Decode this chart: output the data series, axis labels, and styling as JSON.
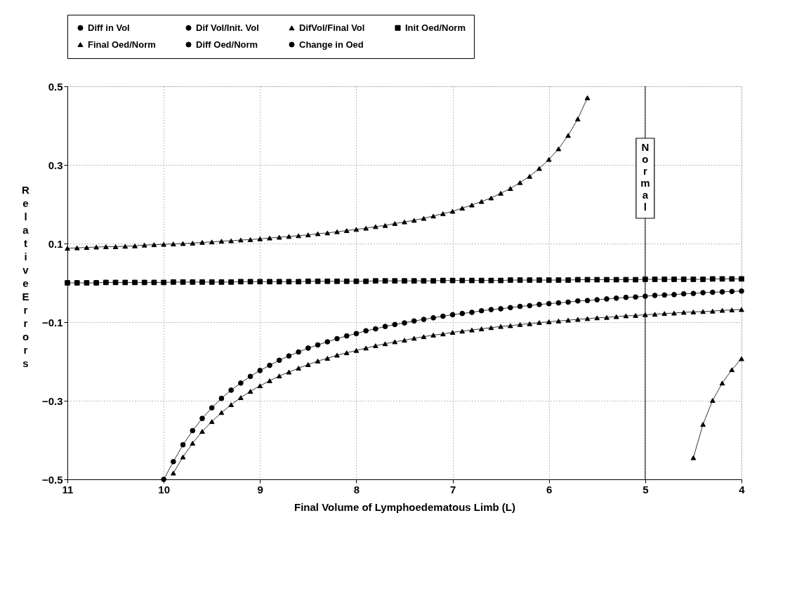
{
  "chart_data": {
    "type": "line",
    "xlabel": "Final Volume of Lymphoedematous Limb (L)",
    "ylabel": "Relative Errors",
    "x": [
      11.0,
      10.9,
      10.8,
      10.7,
      10.6,
      10.5,
      10.4,
      10.3,
      10.2,
      10.1,
      10.0,
      9.9,
      9.8,
      9.7,
      9.6,
      9.5,
      9.4,
      9.3,
      9.2,
      9.1,
      9.0,
      8.9,
      8.8,
      8.7,
      8.6,
      8.5,
      8.4,
      8.3,
      8.2,
      8.1,
      8.0,
      7.9,
      7.8,
      7.7,
      7.6,
      7.5,
      7.4,
      7.3,
      7.2,
      7.1,
      7.0,
      6.9,
      6.8,
      6.7,
      6.6,
      6.5,
      6.4,
      6.3,
      6.2,
      6.1,
      6.0,
      5.9,
      5.8,
      5.7,
      5.6,
      5.5,
      5.4,
      5.3,
      5.2,
      5.1,
      5.0,
      4.9,
      4.8,
      4.7,
      4.6,
      4.5,
      4.4,
      4.3,
      4.2,
      4.1,
      4.0
    ],
    "series": [
      {
        "name": "Diff in Vol",
        "color": "#000000",
        "marker": "circle",
        "values": [
          null,
          null,
          null,
          null,
          null,
          null,
          null,
          null,
          null,
          null,
          null,
          null,
          null,
          null,
          null,
          null,
          null,
          null,
          null,
          null,
          null,
          null,
          null,
          null,
          null,
          null,
          null,
          null,
          null,
          null,
          null,
          null,
          null,
          null,
          null,
          null,
          null,
          null,
          null,
          null,
          null,
          null,
          null,
          null,
          null,
          null,
          null,
          null,
          null,
          null,
          null,
          null,
          null,
          null,
          null,
          null,
          null,
          null,
          null,
          null,
          null,
          null,
          null,
          null,
          null,
          null,
          null,
          null,
          null,
          null,
          null
        ]
      },
      {
        "name": "Dif Vol/Init. Vol",
        "color": "#000000",
        "marker": "circle",
        "values": [
          null,
          null,
          null,
          null,
          null,
          null,
          null,
          null,
          null,
          null,
          -0.5,
          -0.455,
          -0.412,
          -0.376,
          -0.345,
          -0.318,
          -0.294,
          -0.273,
          -0.255,
          -0.238,
          -0.223,
          -0.21,
          -0.197,
          -0.186,
          -0.176,
          -0.166,
          -0.158,
          -0.15,
          -0.142,
          -0.135,
          -0.129,
          -0.122,
          -0.117,
          -0.111,
          -0.106,
          -0.102,
          -0.097,
          -0.093,
          -0.089,
          -0.085,
          -0.081,
          -0.078,
          -0.075,
          -0.071,
          -0.068,
          -0.066,
          -0.063,
          -0.06,
          -0.058,
          -0.055,
          -0.053,
          -0.051,
          -0.049,
          -0.046,
          -0.045,
          -0.043,
          -0.041,
          -0.039,
          -0.037,
          -0.036,
          -0.034,
          -0.032,
          -0.031,
          -0.03,
          -0.028,
          -0.027,
          -0.025,
          -0.024,
          -0.023,
          -0.022,
          -0.021
        ]
      },
      {
        "name": "DifVol/Final Vol",
        "color": "#000000",
        "marker": "triangle",
        "values": [
          null,
          null,
          null,
          null,
          null,
          null,
          null,
          null,
          null,
          null,
          null,
          -0.484,
          -0.443,
          -0.408,
          -0.378,
          -0.353,
          -0.33,
          -0.31,
          -0.292,
          -0.276,
          -0.262,
          -0.249,
          -0.237,
          -0.227,
          -0.217,
          -0.208,
          -0.199,
          -0.192,
          -0.184,
          -0.178,
          -0.172,
          -0.166,
          -0.16,
          -0.155,
          -0.15,
          -0.146,
          -0.141,
          -0.137,
          -0.133,
          -0.13,
          -0.126,
          -0.123,
          -0.12,
          -0.117,
          -0.114,
          -0.111,
          -0.109,
          -0.106,
          -0.104,
          -0.101,
          -0.099,
          -0.097,
          -0.095,
          -0.093,
          -0.091,
          -0.089,
          -0.088,
          -0.086,
          -0.084,
          -0.083,
          -0.081,
          -0.08,
          -0.078,
          -0.077,
          -0.075,
          -0.074,
          -0.073,
          -0.072,
          -0.07,
          -0.069,
          -0.068
        ]
      },
      {
        "name": "Init Oed/Norm",
        "color": "#000000",
        "marker": "square",
        "values": [
          0.0,
          0.0,
          0.0,
          0.0,
          0.001,
          0.001,
          0.001,
          0.001,
          0.001,
          0.001,
          0.001,
          0.002,
          0.002,
          0.002,
          0.002,
          0.002,
          0.002,
          0.002,
          0.003,
          0.003,
          0.003,
          0.003,
          0.003,
          0.003,
          0.003,
          0.004,
          0.004,
          0.004,
          0.004,
          0.004,
          0.004,
          0.004,
          0.005,
          0.005,
          0.005,
          0.005,
          0.005,
          0.005,
          0.005,
          0.006,
          0.006,
          0.006,
          0.006,
          0.006,
          0.006,
          0.006,
          0.007,
          0.007,
          0.007,
          0.007,
          0.007,
          0.007,
          0.007,
          0.008,
          0.008,
          0.008,
          0.008,
          0.008,
          0.008,
          0.008,
          0.009,
          0.009,
          0.009,
          0.009,
          0.009,
          0.009,
          0.009,
          0.01,
          0.01,
          0.01,
          0.01
        ]
      },
      {
        "name": "Final Oed/Norm",
        "color": "#000000",
        "marker": "triangle",
        "values": [
          0.088,
          0.089,
          0.09,
          0.091,
          0.092,
          0.092,
          0.093,
          0.094,
          0.096,
          0.097,
          0.098,
          0.099,
          0.1,
          0.101,
          0.103,
          0.104,
          0.106,
          0.107,
          0.109,
          0.11,
          0.112,
          0.114,
          0.116,
          0.118,
          0.12,
          0.122,
          0.125,
          0.127,
          0.13,
          0.133,
          0.136,
          0.139,
          0.143,
          0.146,
          0.151,
          0.155,
          0.159,
          0.164,
          0.17,
          0.176,
          0.182,
          0.19,
          0.198,
          0.207,
          0.216,
          0.228,
          0.24,
          0.255,
          0.271,
          0.291,
          0.314,
          0.341,
          0.375,
          0.417,
          0.471,
          null,
          null,
          null,
          null,
          null,
          null,
          null,
          null,
          null,
          null,
          -0.445,
          -0.36,
          -0.299,
          -0.255,
          -0.221,
          -0.193
        ]
      },
      {
        "name": "Diff Oed/Norm",
        "color": "#000000",
        "marker": "circle",
        "values": [
          null,
          null,
          null,
          null,
          null,
          null,
          null,
          null,
          null,
          null,
          null,
          null,
          null,
          null,
          null,
          null,
          null,
          null,
          null,
          null,
          null,
          null,
          null,
          null,
          null,
          null,
          null,
          null,
          null,
          null,
          null,
          null,
          null,
          null,
          null,
          null,
          null,
          null,
          null,
          null,
          null,
          null,
          null,
          null,
          null,
          null,
          null,
          null,
          null,
          null,
          null,
          null,
          null,
          null,
          null,
          null,
          null,
          null,
          null,
          null,
          null,
          null,
          null,
          null,
          null,
          null,
          null,
          null,
          null,
          null,
          null
        ]
      },
      {
        "name": "Change in Oed",
        "color": "#000000",
        "marker": "circle",
        "values": [
          null,
          null,
          null,
          null,
          null,
          null,
          null,
          null,
          null,
          null,
          null,
          null,
          null,
          null,
          null,
          null,
          null,
          null,
          null,
          null,
          null,
          null,
          null,
          null,
          null,
          null,
          null,
          null,
          null,
          null,
          null,
          null,
          null,
          null,
          null,
          null,
          null,
          null,
          null,
          null,
          null,
          null,
          null,
          null,
          null,
          null,
          null,
          null,
          null,
          null,
          null,
          null,
          null,
          null,
          null,
          null,
          null,
          null,
          null,
          null,
          null,
          null,
          null,
          null,
          null,
          null,
          null,
          null,
          null,
          null,
          null
        ]
      }
    ],
    "xlim": [
      11,
      4
    ],
    "xticks": [
      11,
      10,
      9,
      8,
      7,
      6,
      5,
      4
    ],
    "ylim": [
      -0.5,
      0.5
    ],
    "yticks": [
      -0.5,
      -0.3,
      -0.1,
      0.1,
      0.3,
      0.5
    ],
    "grid": true,
    "legend": "top",
    "line_style": "solid",
    "ref_lines": [
      {
        "axis": "x",
        "value": 5,
        "label": "Normal",
        "color": "#000000"
      }
    ]
  }
}
